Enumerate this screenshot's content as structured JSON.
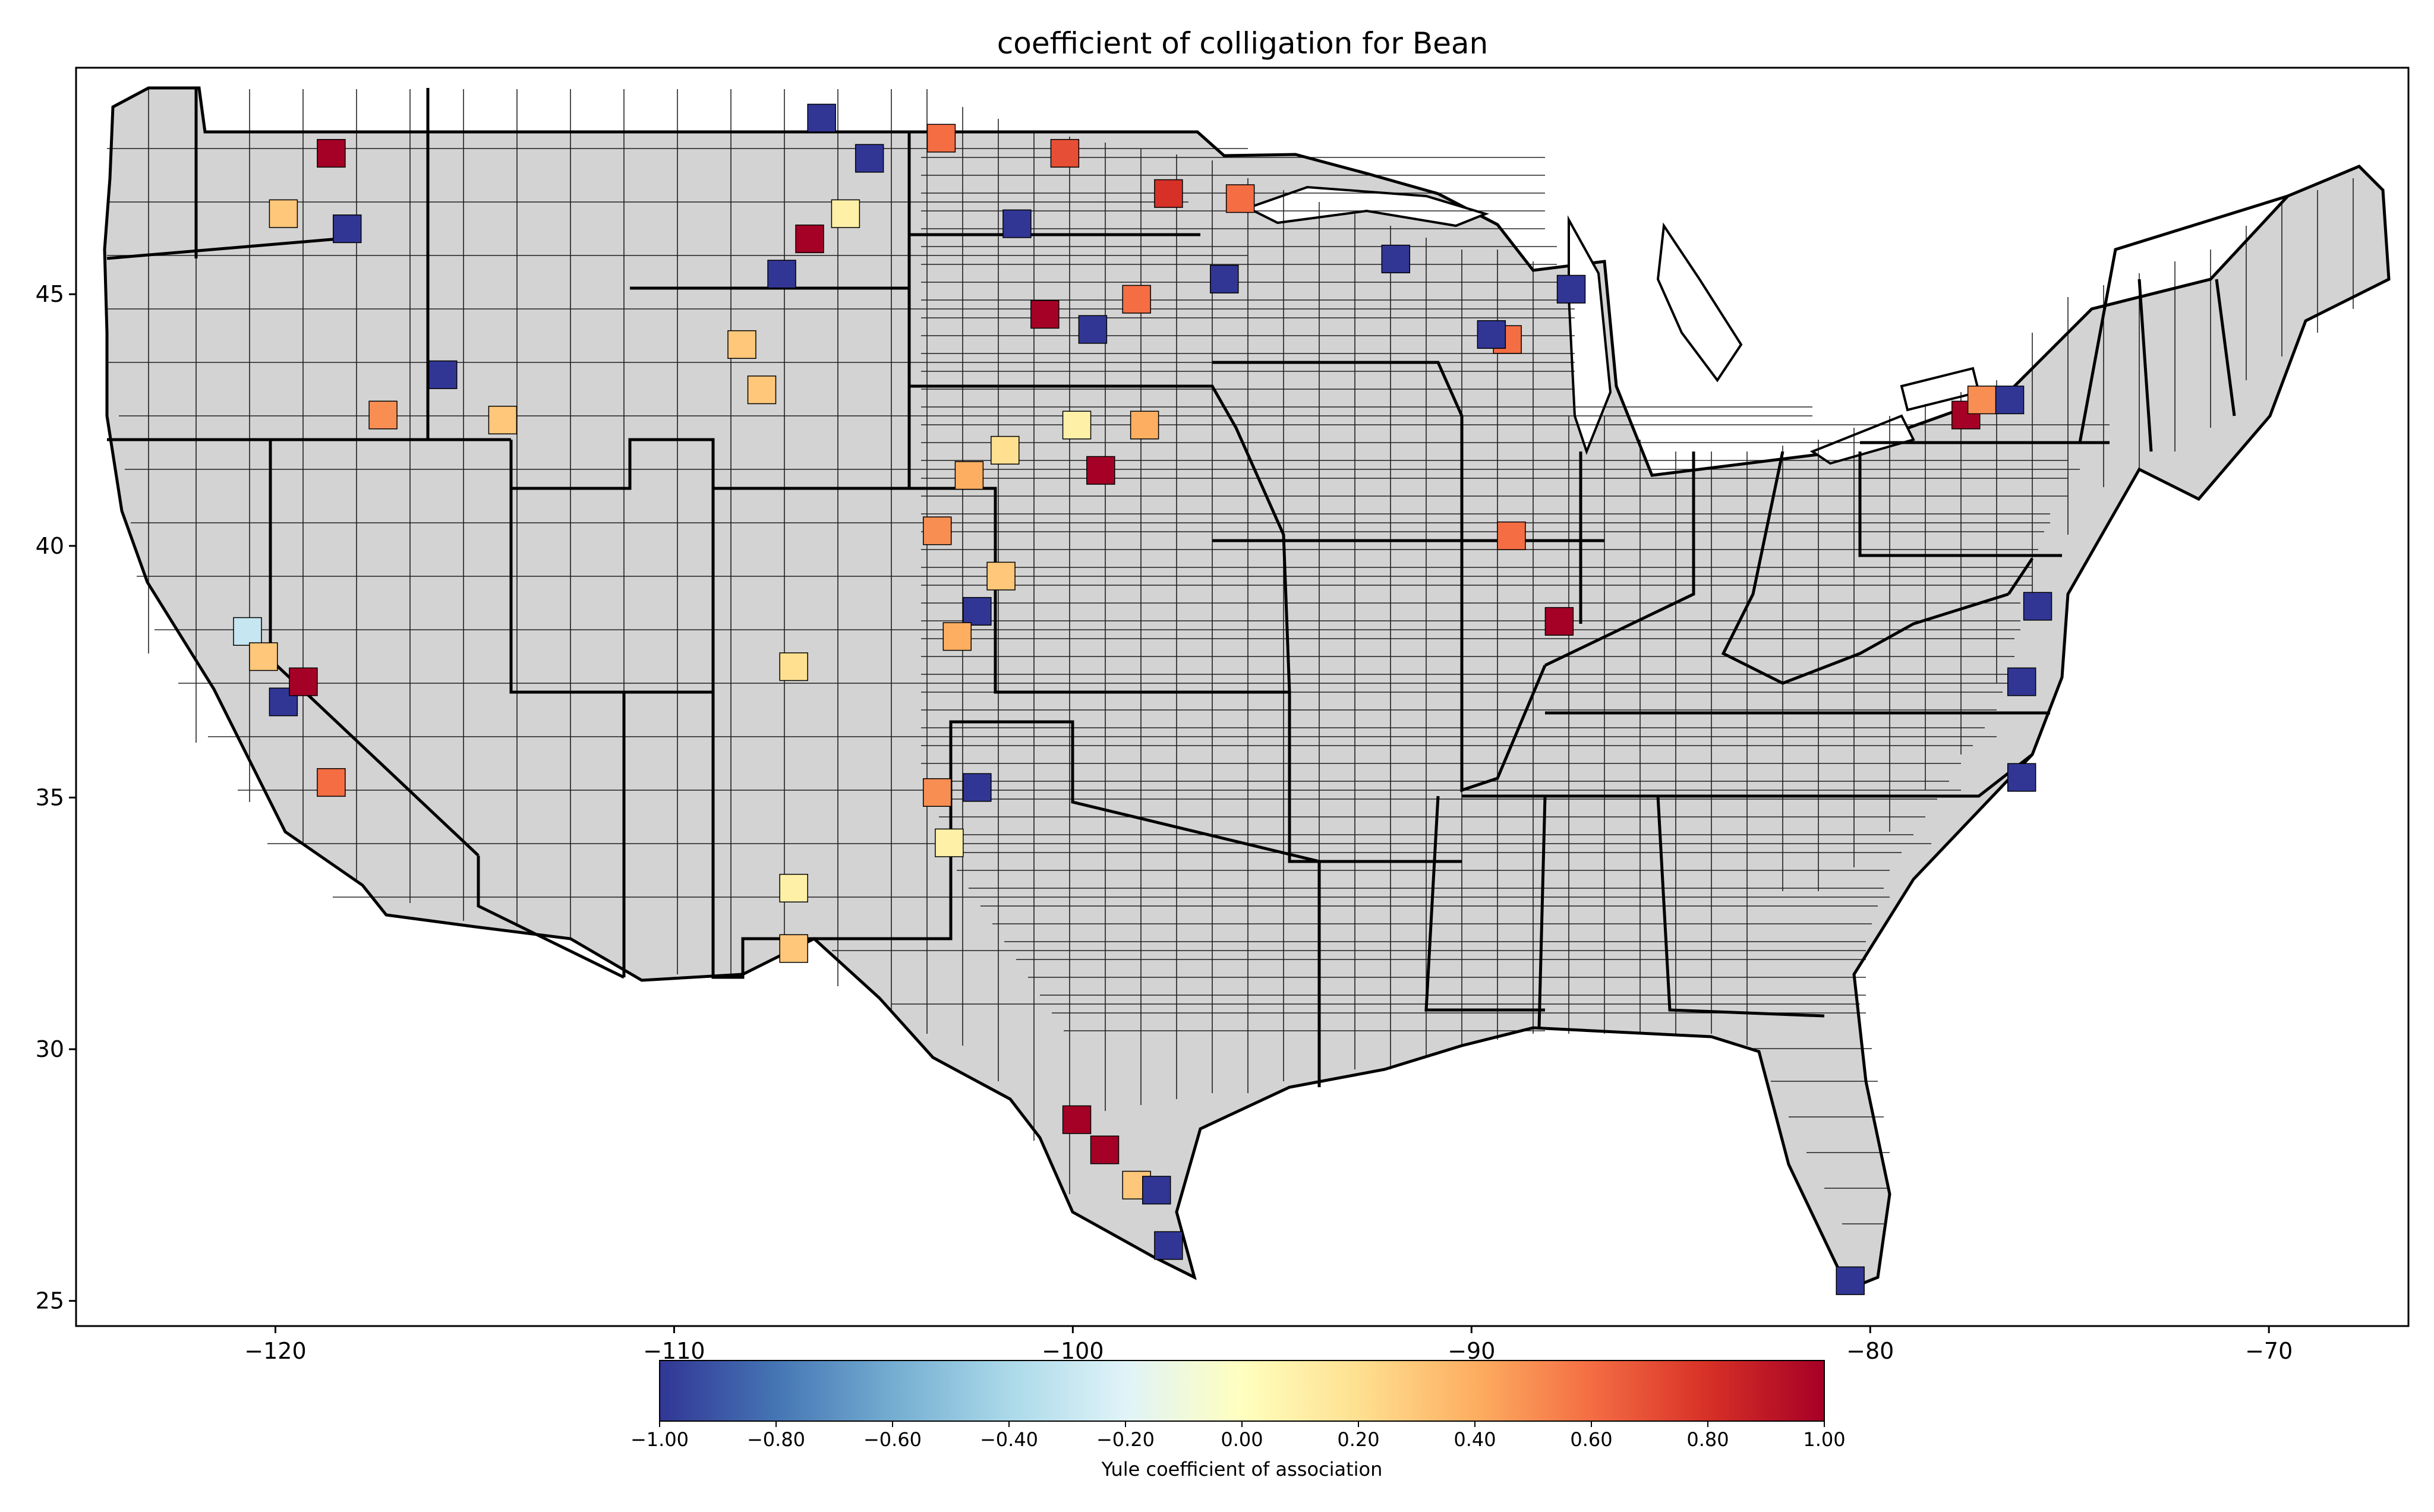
{
  "title": "coefficient of colligation for Bean",
  "chart_data": {
    "type": "choropleth",
    "title": "coefficient of colligation for Bean",
    "xlim": [
      -125,
      -66.5
    ],
    "ylim": [
      24.5,
      49.5
    ],
    "x_ticks": [
      -120,
      -110,
      -100,
      -90,
      -80,
      -70
    ],
    "y_ticks": [
      25,
      30,
      35,
      40,
      45
    ],
    "x_tick_labels": [
      "−120",
      "−110",
      "−100",
      "−90",
      "−80",
      "−70"
    ],
    "y_tick_labels": [
      "25",
      "30",
      "35",
      "40",
      "45"
    ],
    "missing_color": "#d3d3d3",
    "colorbar": {
      "label": "Yule coefficient of association",
      "cmap": "RdYlBu_r",
      "vmin": -1.0,
      "vmax": 1.0,
      "ticks": [
        -1.0,
        -0.8,
        -0.6,
        -0.4,
        -0.2,
        0.0,
        0.2,
        0.4,
        0.6,
        0.8,
        1.0
      ],
      "tick_labels": [
        "−1.00",
        "−0.80",
        "−0.60",
        "−0.40",
        "−0.20",
        "0.00",
        "0.20",
        "0.40",
        "0.60",
        "0.80",
        "1.00"
      ],
      "colors": [
        "#313695",
        "#4575b4",
        "#74add1",
        "#abd9e9",
        "#e0f3f8",
        "#ffffbf",
        "#fee090",
        "#fdae61",
        "#f46d43",
        "#d73027",
        "#a50026"
      ]
    },
    "regions": [
      {
        "lon": -118.6,
        "lat": 47.8,
        "value": 1.0
      },
      {
        "lon": -118.2,
        "lat": 46.3,
        "value": -1.0
      },
      {
        "lon": -119.8,
        "lat": 46.6,
        "value": 0.3
      },
      {
        "lon": -117.3,
        "lat": 42.6,
        "value": 0.5
      },
      {
        "lon": -115.8,
        "lat": 43.4,
        "value": -1.0
      },
      {
        "lon": -114.3,
        "lat": 42.5,
        "value": 0.3
      },
      {
        "lon": -107.3,
        "lat": 45.4,
        "value": -1.0
      },
      {
        "lon": -106.6,
        "lat": 46.1,
        "value": 1.0
      },
      {
        "lon": -105.7,
        "lat": 46.6,
        "value": 0.1
      },
      {
        "lon": -106.3,
        "lat": 48.5,
        "value": -1.0
      },
      {
        "lon": -105.1,
        "lat": 47.7,
        "value": -1.0
      },
      {
        "lon": -108.3,
        "lat": 44.0,
        "value": 0.3
      },
      {
        "lon": -107.8,
        "lat": 43.1,
        "value": 0.3
      },
      {
        "lon": -103.3,
        "lat": 48.1,
        "value": 0.6
      },
      {
        "lon": -100.2,
        "lat": 47.8,
        "value": 0.7
      },
      {
        "lon": -97.6,
        "lat": 47.0,
        "value": 0.8
      },
      {
        "lon": -101.4,
        "lat": 46.4,
        "value": -1.0
      },
      {
        "lon": -100.7,
        "lat": 44.6,
        "value": 1.0
      },
      {
        "lon": -98.4,
        "lat": 44.9,
        "value": 0.6
      },
      {
        "lon": -99.5,
        "lat": 44.3,
        "value": -1.0
      },
      {
        "lon": -102.6,
        "lat": 41.4,
        "value": 0.4
      },
      {
        "lon": -101.7,
        "lat": 41.9,
        "value": 0.2
      },
      {
        "lon": -99.9,
        "lat": 42.4,
        "value": 0.1
      },
      {
        "lon": -98.2,
        "lat": 42.4,
        "value": 0.4
      },
      {
        "lon": -99.3,
        "lat": 41.5,
        "value": 1.0
      },
      {
        "lon": -103.4,
        "lat": 40.3,
        "value": 0.5
      },
      {
        "lon": -101.8,
        "lat": 39.4,
        "value": 0.3
      },
      {
        "lon": -102.4,
        "lat": 38.7,
        "value": -1.0
      },
      {
        "lon": -102.9,
        "lat": 38.2,
        "value": 0.4
      },
      {
        "lon": -107.0,
        "lat": 37.6,
        "value": 0.2
      },
      {
        "lon": -103.4,
        "lat": 35.1,
        "value": 0.5
      },
      {
        "lon": -103.1,
        "lat": 34.1,
        "value": 0.1
      },
      {
        "lon": -102.4,
        "lat": 35.2,
        "value": -1.0
      },
      {
        "lon": -107.0,
        "lat": 33.2,
        "value": 0.1
      },
      {
        "lon": -107.0,
        "lat": 32.0,
        "value": 0.3
      },
      {
        "lon": -95.8,
        "lat": 46.9,
        "value": 0.6
      },
      {
        "lon": -96.2,
        "lat": 45.3,
        "value": -1.0
      },
      {
        "lon": -91.9,
        "lat": 45.7,
        "value": -1.0
      },
      {
        "lon": -89.1,
        "lat": 44.1,
        "value": 0.6
      },
      {
        "lon": -89.5,
        "lat": 44.2,
        "value": -1.0
      },
      {
        "lon": -87.5,
        "lat": 45.1,
        "value": -1.0
      },
      {
        "lon": -87.8,
        "lat": 38.5,
        "value": 1.0
      },
      {
        "lon": -89.0,
        "lat": 40.2,
        "value": 0.6
      },
      {
        "lon": -120.7,
        "lat": 38.3,
        "value": -0.3
      },
      {
        "lon": -120.3,
        "lat": 37.8,
        "value": 0.3
      },
      {
        "lon": -119.8,
        "lat": 36.9,
        "value": -1.0
      },
      {
        "lon": -119.3,
        "lat": 37.3,
        "value": 1.0
      },
      {
        "lon": -118.6,
        "lat": 35.3,
        "value": 0.6
      },
      {
        "lon": -77.6,
        "lat": 42.6,
        "value": 1.0
      },
      {
        "lon": -77.2,
        "lat": 42.9,
        "value": 0.5
      },
      {
        "lon": -76.5,
        "lat": 42.9,
        "value": -1.0
      },
      {
        "lon": -75.8,
        "lat": 38.8,
        "value": -1.0
      },
      {
        "lon": -76.2,
        "lat": 37.3,
        "value": -1.0
      },
      {
        "lon": -76.2,
        "lat": 35.4,
        "value": -1.0
      },
      {
        "lon": -99.9,
        "lat": 28.6,
        "value": 1.0
      },
      {
        "lon": -99.2,
        "lat": 28.0,
        "value": 1.0
      },
      {
        "lon": -98.4,
        "lat": 27.3,
        "value": 0.3
      },
      {
        "lon": -97.9,
        "lat": 27.2,
        "value": -1.0
      },
      {
        "lon": -97.6,
        "lat": 26.1,
        "value": -1.0
      },
      {
        "lon": -80.5,
        "lat": 25.4,
        "value": -1.0
      }
    ]
  }
}
